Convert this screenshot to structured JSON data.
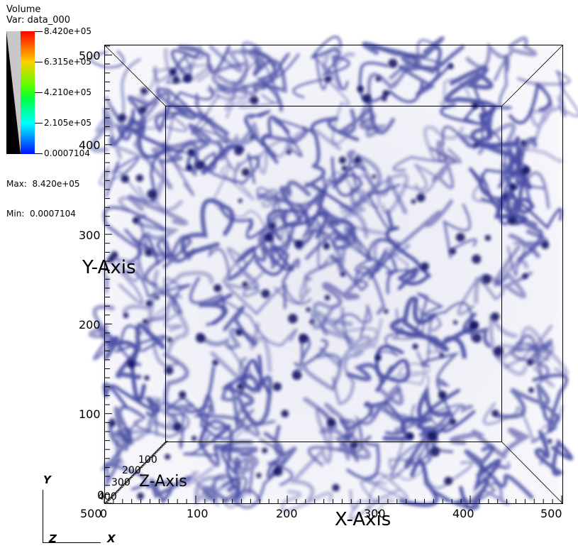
{
  "legend": {
    "title": "Volume",
    "variable": "Var: data_000",
    "ticks": [
      "8.420e+05",
      "6.315e+05",
      "4.210e+05",
      "2.105e+05",
      "0.0007104"
    ],
    "max_label": "Max:  8.420e+05",
    "min_label": "Min:  0.0007104",
    "colormap": [
      "#ff0000",
      "#ffa500",
      "#ffff00",
      "#00ff00",
      "#00ffff",
      "#0000ff"
    ]
  },
  "plot": {
    "y_axis": {
      "title": "Y-Axis",
      "ticks": [
        "500",
        "400",
        "300",
        "200",
        "100",
        "0"
      ]
    },
    "x_axis": {
      "title": "X-Axis",
      "ticks": [
        "0",
        "100",
        "200",
        "300",
        "400",
        "500"
      ]
    },
    "z_axis": {
      "title": "Z-Axis",
      "ticks": [
        "100",
        "200",
        "300",
        "400",
        "500"
      ]
    },
    "render_color": "#1a1f8c",
    "background": "#ffffff"
  },
  "triad": {
    "y": "Y",
    "z": "Z",
    "x": "X"
  }
}
